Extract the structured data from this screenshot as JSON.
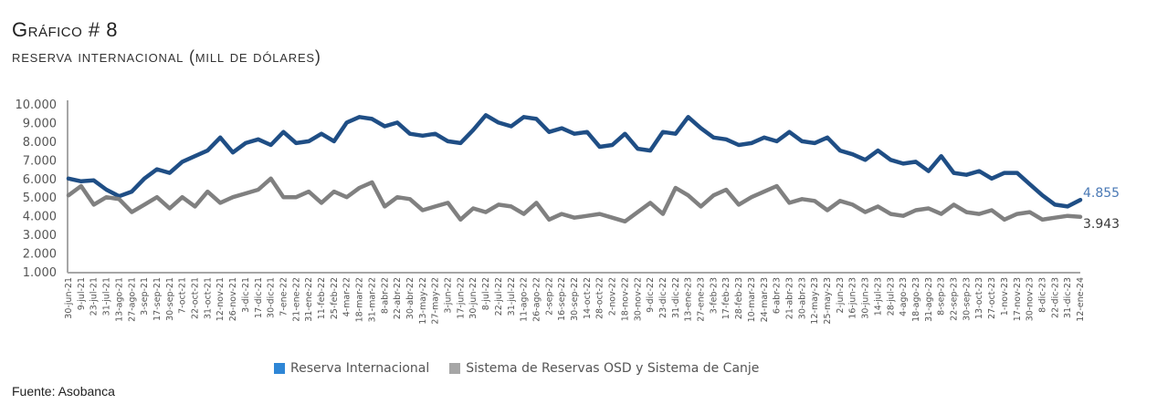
{
  "header": {
    "title": "Gráfico # 8",
    "subtitle": "Reserva Internacional (mill de dólares)"
  },
  "footer": {
    "source": "Fuente: Asobanca"
  },
  "chart_data": {
    "type": "line",
    "title": "Gráfico # 8",
    "subtitle": "Reserva Internacional (mill de dólares)",
    "xlabel": "",
    "ylabel": "",
    "ylim": [
      1000,
      10000
    ],
    "yticks": [
      1000,
      2000,
      3000,
      4000,
      5000,
      6000,
      7000,
      8000,
      9000,
      10000
    ],
    "ytick_labels": [
      "1.000",
      "2.000",
      "3.000",
      "4.000",
      "5.000",
      "6.000",
      "7.000",
      "8.000",
      "9.000",
      "10.000"
    ],
    "grid": false,
    "legend_position": "bottom",
    "categories": [
      "30-jun-21",
      "9-jul-21",
      "23-jul-21",
      "31-jul-21",
      "13-ago-21",
      "27-ago-21",
      "3-sep-21",
      "17-sep-21",
      "30-sep-21",
      "7-oct-21",
      "22-oct-21",
      "31-oct-21",
      "12-nov-21",
      "26-nov-21",
      "3-dic-21",
      "17-dic-21",
      "30-dic-21",
      "7-ene-22",
      "21-ene-22",
      "31-ene-22",
      "11-feb-22",
      "25-feb-22",
      "4-mar-22",
      "18-mar-22",
      "31-mar-22",
      "8-abr-22",
      "22-abr-22",
      "30-abr-22",
      "13-may-22",
      "27-may-22",
      "3-jun-22",
      "17-jun-22",
      "30-jun-22",
      "8-jul-22",
      "22-jul-22",
      "31-jul-22",
      "11-ago-22",
      "26-ago-22",
      "2-sep-22",
      "16-sep-22",
      "30-sep-22",
      "14-oct-22",
      "28-oct-22",
      "2-nov-22",
      "18-nov-22",
      "30-nov-22",
      "9-dic-22",
      "23-dic-22",
      "31-dic-22",
      "13-ene-23",
      "27-ene-23",
      "3-feb-23",
      "17-feb-23",
      "28-feb-23",
      "10-mar-23",
      "24-mar-23",
      "6-abr-23",
      "21-abr-23",
      "30-abr-23",
      "12-may-23",
      "25-may-23",
      "2-jun-23",
      "16-jun-23",
      "30-jun-23",
      "14-jul-23",
      "28-jul-23",
      "4-ago-23",
      "18-ago-23",
      "31-ago-23",
      "8-sep-23",
      "22-sep-23",
      "30-sep-23",
      "13-oct-23",
      "27-oct-23",
      "1-nov-23",
      "17-nov-23",
      "30-nov-23",
      "8-dic-23",
      "22-dic-23",
      "31-dic-23",
      "12-ene-24"
    ],
    "series": [
      {
        "name": "Reserva Internacional",
        "color": "#1f4e85",
        "legend_color": "#2e86d6",
        "end_label": "4.855",
        "end_label_color": "#4a79b5",
        "values": [
          6000,
          5850,
          5900,
          5400,
          5050,
          5300,
          6000,
          6500,
          6300,
          6900,
          7200,
          7500,
          8200,
          7400,
          7900,
          8100,
          7800,
          8500,
          7900,
          8000,
          8400,
          8000,
          9000,
          9300,
          9200,
          8800,
          9000,
          8400,
          8300,
          8400,
          8000,
          7900,
          8600,
          9400,
          9000,
          8800,
          9300,
          9200,
          8500,
          8700,
          8400,
          8500,
          7700,
          7800,
          8400,
          7600,
          7500,
          8500,
          8400,
          9300,
          8700,
          8200,
          8100,
          7800,
          7900,
          8200,
          8000,
          8500,
          8000,
          7900,
          8200,
          7500,
          7300,
          7000,
          7500,
          7000,
          6800,
          6900,
          6400,
          7200,
          6300,
          6200,
          6400,
          6000,
          6300,
          6300,
          5700,
          5100,
          4600,
          4500,
          4855
        ]
      },
      {
        "name": "Sistema de Reservas OSD y Sistema de Canje",
        "color": "#808080",
        "legend_color": "#a6a6a6",
        "end_label": "3.943",
        "end_label_color": "#3a3a3a",
        "values": [
          5100,
          5600,
          4600,
          5000,
          4900,
          4200,
          4600,
          5000,
          4400,
          5000,
          4500,
          5300,
          4700,
          5000,
          5200,
          5400,
          6000,
          5000,
          5000,
          5300,
          4700,
          5300,
          5000,
          5500,
          5800,
          4500,
          5000,
          4900,
          4300,
          4500,
          4700,
          3800,
          4400,
          4200,
          4600,
          4500,
          4100,
          4700,
          3800,
          4100,
          3900,
          4000,
          4100,
          3900,
          3700,
          4200,
          4700,
          4100,
          5500,
          5100,
          4500,
          5100,
          5400,
          4600,
          5000,
          5300,
          5600,
          4700,
          4900,
          4800,
          4300,
          4800,
          4600,
          4200,
          4500,
          4100,
          4000,
          4300,
          4400,
          4100,
          4600,
          4200,
          4100,
          4300,
          3800,
          4100,
          4200,
          3800,
          3900,
          4000,
          3943
        ]
      }
    ]
  }
}
